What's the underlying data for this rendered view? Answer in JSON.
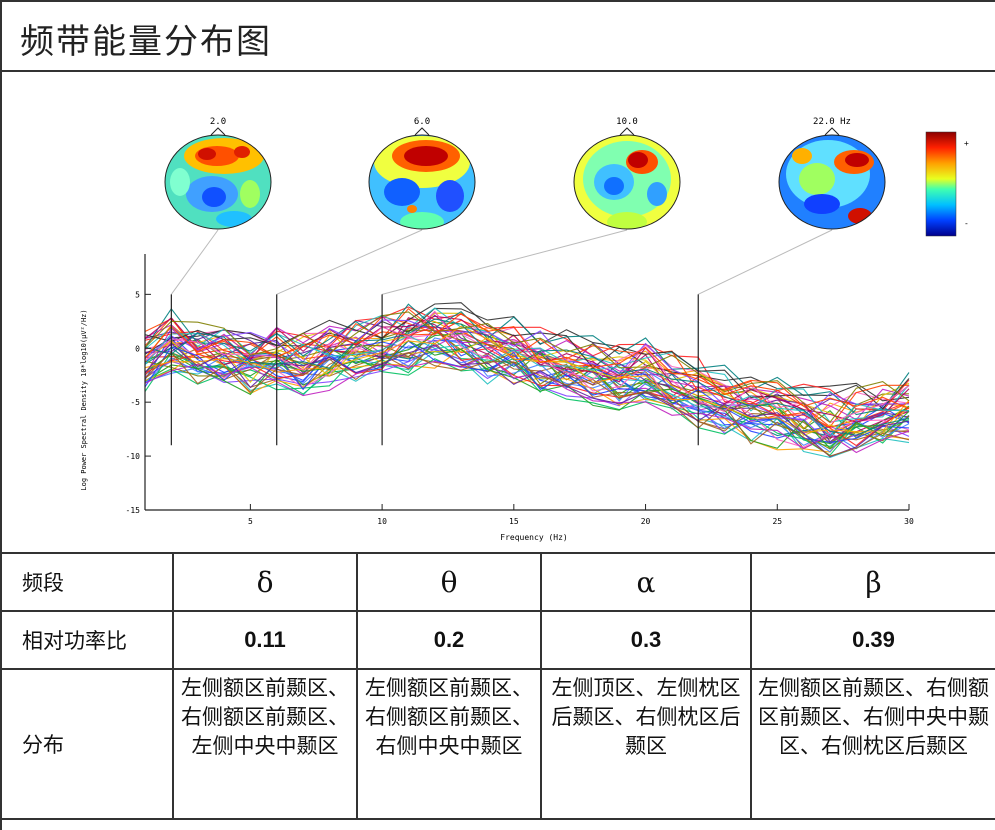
{
  "header": {
    "title": "频带能量分布图"
  },
  "figure": {
    "maps": [
      {
        "label": "2.0"
      },
      {
        "label": "6.0"
      },
      {
        "label": "10.0"
      },
      {
        "label": "22.0 Hz"
      }
    ],
    "colorbar": {
      "top_label": "+",
      "bottom_label": "-"
    }
  },
  "chart_data": {
    "type": "line",
    "xlabel": "Frequency (Hz)",
    "ylabel": "Log Power Spectral Density 10*log10(μV²/Hz)",
    "xlim": [
      1,
      30
    ],
    "ylim": [
      -15,
      8
    ],
    "xticks": [
      5,
      10,
      15,
      20,
      25,
      30
    ],
    "yticks": [
      5,
      0,
      -5,
      -10,
      -15
    ],
    "marker_frequencies": [
      2,
      6,
      10,
      22
    ],
    "mean_spectrum": {
      "x": [
        1,
        2,
        3,
        4,
        5,
        6,
        7,
        8,
        9,
        10,
        11,
        12,
        13,
        14,
        15,
        16,
        17,
        18,
        19,
        20,
        21,
        22,
        23,
        24,
        25,
        26,
        27,
        28,
        29,
        30
      ],
      "y": [
        -1,
        0.5,
        0,
        -0.5,
        -1,
        -0.5,
        -1,
        -0.5,
        0,
        0.5,
        1,
        1.5,
        1,
        0,
        -0.5,
        -1,
        -1.5,
        -2,
        -2.5,
        -2,
        -3,
        -4,
        -5,
        -5.5,
        -6,
        -6.5,
        -7,
        -6.5,
        -6,
        -5.5
      ]
    },
    "grid": false,
    "legend": "none"
  },
  "table": {
    "header": {
      "label": "频段",
      "bands": [
        "δ",
        "θ",
        "α",
        "β"
      ]
    },
    "ratio": {
      "label": "相对功率比",
      "values": [
        "0.11",
        "0.2",
        "0.3",
        "0.39"
      ]
    },
    "distribution": {
      "label": "分布",
      "values": [
        "左侧额区前颞区、右侧额区前颞区、左侧中央中颞区",
        "左侧额区前颞区、右侧额区前颞区、右侧中央中颞区",
        "左侧顶区、左侧枕区后颞区、右侧枕区后颞区",
        "左侧额区前颞区、右侧额区前颞区、右侧中央中颞区、右侧枕区后颞区"
      ]
    }
  }
}
